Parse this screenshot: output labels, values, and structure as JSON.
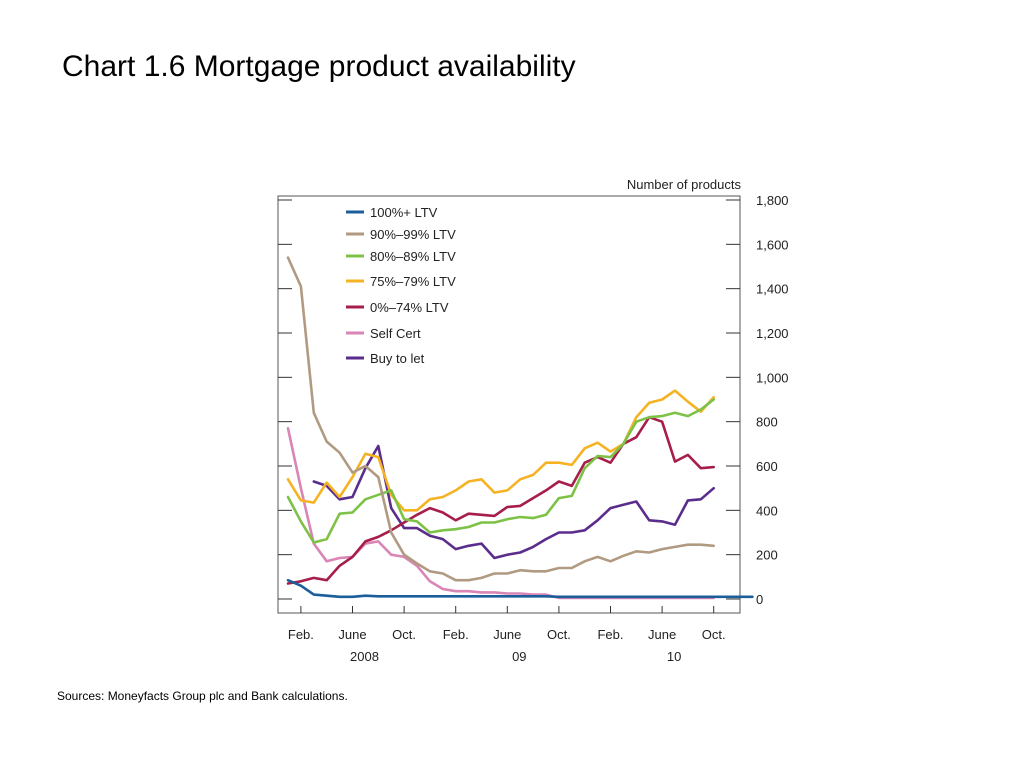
{
  "slide": {
    "title": "Chart 1.6  Mortgage product availability",
    "footnote": "Sources:  Moneyfacts Group plc and Bank calculations."
  },
  "chart_data": {
    "type": "line",
    "title": "",
    "ylabel": "Number of products",
    "xlabel": "",
    "ylim": [
      0,
      1800
    ],
    "yticks": [
      0,
      200,
      400,
      600,
      800,
      1000,
      1200,
      1400,
      1600,
      1800
    ],
    "ytick_labels": [
      "0",
      "200",
      "400",
      "600",
      "800",
      "1,000",
      "1,200",
      "1,400",
      "1,600",
      "1,800"
    ],
    "x_start": "2008-01",
    "x_labels": [
      {
        "month": "2008-02",
        "label": "Feb."
      },
      {
        "month": "2008-06",
        "label": "June"
      },
      {
        "month": "2008-10",
        "label": "Oct."
      },
      {
        "month": "2009-02",
        "label": "Feb."
      },
      {
        "month": "2009-06",
        "label": "June"
      },
      {
        "month": "2009-10",
        "label": "Oct."
      },
      {
        "month": "2010-02",
        "label": "Feb."
      },
      {
        "month": "2010-06",
        "label": "June"
      },
      {
        "month": "2010-10",
        "label": "Oct."
      }
    ],
    "year_labels": [
      {
        "month": "2008-06",
        "label": "2008"
      },
      {
        "month": "2009-06",
        "label": "09"
      },
      {
        "month": "2010-06",
        "label": "10"
      }
    ],
    "grid": false,
    "legend_position": "top-left",
    "series": [
      {
        "name": "100%+ LTV",
        "color": "#1b5e9a",
        "start": "2008-01",
        "values": [
          85,
          60,
          20,
          15,
          10,
          10,
          15,
          12,
          12,
          12,
          12,
          12,
          12,
          12,
          12,
          12,
          12,
          12,
          12,
          12,
          12,
          10,
          10,
          10,
          10,
          10,
          10,
          10,
          10,
          10,
          10,
          10,
          10,
          10,
          10,
          10,
          10
        ]
      },
      {
        "name": "90%–99% LTV",
        "color": "#b19a82",
        "start": "2008-01",
        "values": [
          1540,
          1410,
          840,
          710,
          660,
          570,
          600,
          550,
          300,
          200,
          160,
          125,
          115,
          85,
          85,
          95,
          115,
          115,
          130,
          125,
          125,
          140,
          140,
          170,
          190,
          170,
          195,
          215,
          210,
          225,
          235,
          245,
          245,
          240
        ]
      },
      {
        "name": "80%–89% LTV",
        "color": "#7dc247",
        "start": "2008-01",
        "values": [
          460,
          350,
          255,
          270,
          385,
          390,
          450,
          470,
          490,
          360,
          350,
          300,
          310,
          315,
          325,
          345,
          345,
          360,
          370,
          365,
          380,
          455,
          465,
          590,
          645,
          640,
          700,
          800,
          820,
          825,
          840,
          825,
          855,
          900
        ]
      },
      {
        "name": "75%–79% LTV",
        "color": "#f5b324",
        "start": "2008-01",
        "values": [
          540,
          445,
          435,
          525,
          460,
          550,
          655,
          640,
          470,
          400,
          400,
          450,
          460,
          490,
          530,
          540,
          480,
          490,
          540,
          560,
          615,
          615,
          605,
          680,
          705,
          665,
          700,
          820,
          885,
          900,
          940,
          890,
          845,
          910
        ]
      },
      {
        "name": "0%–74% LTV",
        "color": "#a71d4b",
        "start": "2008-01",
        "values": [
          70,
          80,
          95,
          85,
          150,
          190,
          260,
          280,
          310,
          345,
          380,
          410,
          390,
          355,
          385,
          380,
          375,
          415,
          420,
          455,
          490,
          530,
          510,
          615,
          640,
          615,
          700,
          730,
          820,
          800,
          620,
          650,
          590,
          595
        ]
      },
      {
        "name": "Self Cert",
        "color": "#d985b5",
        "start": "2008-01",
        "values": [
          770,
          500,
          250,
          170,
          185,
          190,
          250,
          260,
          200,
          190,
          150,
          80,
          45,
          35,
          35,
          30,
          30,
          25,
          25,
          20,
          20,
          5,
          5,
          5,
          5,
          5,
          5,
          5,
          5,
          5,
          5,
          5,
          5,
          5
        ]
      },
      {
        "name": "Buy to let",
        "color": "#5a2d8c",
        "start": "2008-03",
        "values": [
          530,
          510,
          450,
          460,
          590,
          690,
          410,
          320,
          320,
          285,
          270,
          225,
          240,
          250,
          185,
          200,
          210,
          235,
          270,
          300,
          300,
          310,
          355,
          410,
          425,
          440,
          355,
          350,
          335,
          445,
          450,
          500
        ]
      }
    ]
  }
}
